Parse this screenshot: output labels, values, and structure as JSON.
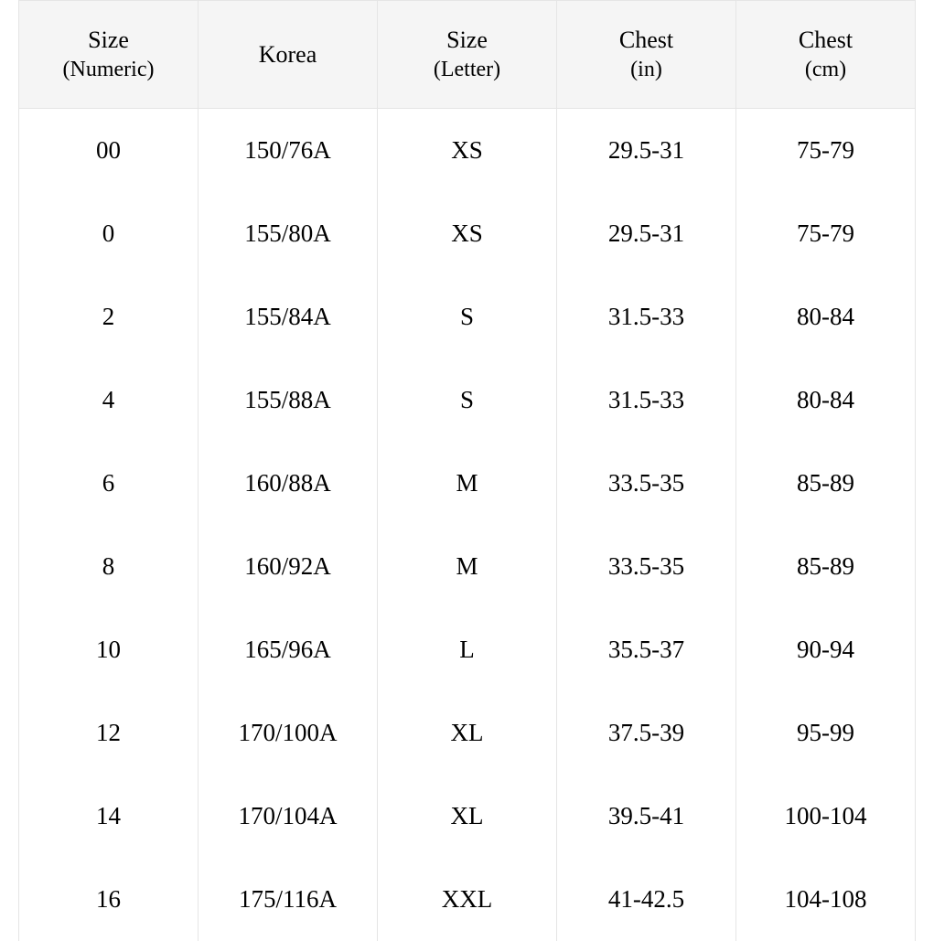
{
  "table": {
    "columns": [
      {
        "main": "Size",
        "sub": "(Numeric)"
      },
      {
        "main": "Korea",
        "sub": ""
      },
      {
        "main": "Size",
        "sub": "(Letter)"
      },
      {
        "main": "Chest",
        "sub": "(in)"
      },
      {
        "main": "Chest",
        "sub": "(cm)"
      }
    ],
    "rows": [
      [
        "00",
        "150/76A",
        "XS",
        "29.5-31",
        "75-79"
      ],
      [
        "0",
        "155/80A",
        "XS",
        "29.5-31",
        "75-79"
      ],
      [
        "2",
        "155/84A",
        "S",
        "31.5-33",
        "80-84"
      ],
      [
        "4",
        "155/88A",
        "S",
        "31.5-33",
        "80-84"
      ],
      [
        "6",
        "160/88A",
        "M",
        "33.5-35",
        "85-89"
      ],
      [
        "8",
        "160/92A",
        "M",
        "33.5-35",
        "85-89"
      ],
      [
        "10",
        "165/96A",
        "L",
        "35.5-37",
        "90-94"
      ],
      [
        "12",
        "170/100A",
        "XL",
        "37.5-39",
        "95-99"
      ],
      [
        "14",
        "170/104A",
        "XL",
        "39.5-41",
        "100-104"
      ],
      [
        "16",
        "175/116A",
        "XXL",
        "41-42.5",
        "104-108"
      ]
    ],
    "header_bg": "#f5f5f5",
    "border_color": "#e5e5e5",
    "font_family": "serif",
    "body_fontsize": 27,
    "header_fontsize": 26
  }
}
